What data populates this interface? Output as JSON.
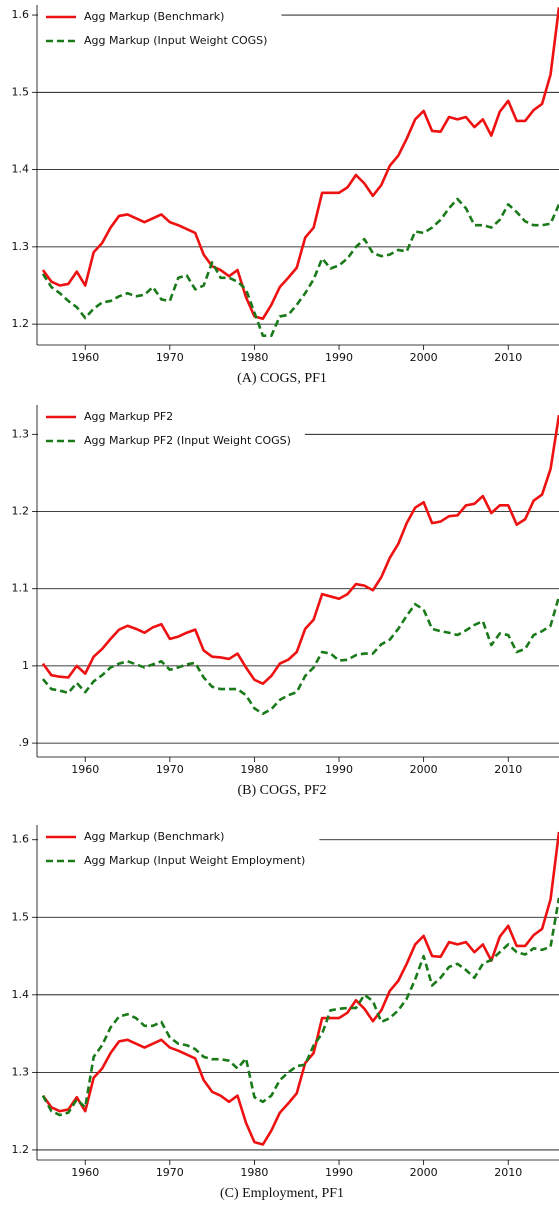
{
  "chart_data": [
    {
      "type": "line",
      "title": "(A) COGS, PF1",
      "x": [
        1955,
        1956,
        1957,
        1958,
        1959,
        1960,
        1961,
        1962,
        1963,
        1964,
        1965,
        1966,
        1967,
        1968,
        1969,
        1970,
        1971,
        1972,
        1973,
        1974,
        1975,
        1976,
        1977,
        1978,
        1979,
        1980,
        1981,
        1982,
        1983,
        1984,
        1985,
        1986,
        1987,
        1988,
        1989,
        1990,
        1991,
        1992,
        1993,
        1994,
        1995,
        1996,
        1997,
        1998,
        1999,
        2000,
        2001,
        2002,
        2003,
        2004,
        2005,
        2006,
        2007,
        2008,
        2009,
        2010,
        2011,
        2012,
        2013,
        2014,
        2015,
        2016
      ],
      "series": [
        {
          "name": "Agg Markup (Benchmark)",
          "color": "#ee1111",
          "dashed": false,
          "values": [
            1.27,
            1.255,
            1.25,
            1.252,
            1.268,
            1.25,
            1.293,
            1.305,
            1.325,
            1.34,
            1.342,
            1.337,
            1.332,
            1.337,
            1.342,
            1.332,
            1.328,
            1.323,
            1.318,
            1.29,
            1.275,
            1.27,
            1.262,
            1.27,
            1.235,
            1.21,
            1.207,
            1.225,
            1.248,
            1.26,
            1.273,
            1.312,
            1.325,
            1.37,
            1.37,
            1.37,
            1.377,
            1.393,
            1.382,
            1.366,
            1.38,
            1.405,
            1.418,
            1.44,
            1.465,
            1.476,
            1.45,
            1.449,
            1.468,
            1.465,
            1.468,
            1.455,
            1.465,
            1.444,
            1.475,
            1.489,
            1.463,
            1.463,
            1.477,
            1.485,
            1.523,
            1.61
          ]
        },
        {
          "name": "Agg Markup (Input Weight COGS)",
          "color": "#1a7a1a",
          "dashed": true,
          "values": [
            1.265,
            1.248,
            1.24,
            1.23,
            1.222,
            1.208,
            1.22,
            1.228,
            1.23,
            1.236,
            1.24,
            1.236,
            1.238,
            1.248,
            1.232,
            1.23,
            1.26,
            1.263,
            1.245,
            1.25,
            1.28,
            1.26,
            1.26,
            1.255,
            1.245,
            1.215,
            1.185,
            1.185,
            1.21,
            1.212,
            1.225,
            1.24,
            1.258,
            1.285,
            1.272,
            1.276,
            1.285,
            1.3,
            1.31,
            1.292,
            1.288,
            1.29,
            1.296,
            1.294,
            1.32,
            1.318,
            1.325,
            1.335,
            1.35,
            1.362,
            1.35,
            1.328,
            1.328,
            1.325,
            1.335,
            1.355,
            1.345,
            1.333,
            1.328,
            1.328,
            1.33,
            1.355
          ]
        }
      ],
      "xlim": [
        1954.3,
        2016
      ],
      "xticks": [
        1960,
        1970,
        1980,
        1990,
        2000,
        2010
      ],
      "ylim": [
        1.173,
        1.613
      ],
      "yticks": [
        1.2,
        1.3,
        1.4,
        1.5,
        1.6
      ],
      "grid": true,
      "legend": "top-left"
    },
    {
      "type": "line",
      "title": "(B) COGS, PF2",
      "x": [
        1955,
        1956,
        1957,
        1958,
        1959,
        1960,
        1961,
        1962,
        1963,
        1964,
        1965,
        1966,
        1967,
        1968,
        1969,
        1970,
        1971,
        1972,
        1973,
        1974,
        1975,
        1976,
        1977,
        1978,
        1979,
        1980,
        1981,
        1982,
        1983,
        1984,
        1985,
        1986,
        1987,
        1988,
        1989,
        1990,
        1991,
        1992,
        1993,
        1994,
        1995,
        1996,
        1997,
        1998,
        1999,
        2000,
        2001,
        2002,
        2003,
        2004,
        2005,
        2006,
        2007,
        2008,
        2009,
        2010,
        2011,
        2012,
        2013,
        2014,
        2015,
        2016
      ],
      "series": [
        {
          "name": "Agg Markup PF2",
          "color": "#ee1111",
          "dashed": false,
          "values": [
            1.003,
            0.988,
            0.986,
            0.985,
            1.0,
            0.99,
            1.012,
            1.022,
            1.035,
            1.047,
            1.052,
            1.048,
            1.043,
            1.05,
            1.054,
            1.035,
            1.038,
            1.043,
            1.047,
            1.02,
            1.012,
            1.011,
            1.009,
            1.016,
            0.998,
            0.982,
            0.977,
            0.987,
            1.003,
            1.008,
            1.018,
            1.048,
            1.06,
            1.093,
            1.09,
            1.087,
            1.093,
            1.106,
            1.104,
            1.098,
            1.115,
            1.14,
            1.158,
            1.185,
            1.205,
            1.212,
            1.185,
            1.187,
            1.194,
            1.195,
            1.208,
            1.21,
            1.22,
            1.198,
            1.208,
            1.208,
            1.183,
            1.19,
            1.214,
            1.222,
            1.255,
            1.325
          ]
        },
        {
          "name": "Agg Markup PF2 (Input Weight COGS)",
          "color": "#1a7a1a",
          "dashed": true,
          "values": [
            0.983,
            0.97,
            0.968,
            0.965,
            0.978,
            0.966,
            0.98,
            0.988,
            0.998,
            1.003,
            1.006,
            1.002,
            0.998,
            1.002,
            1.006,
            0.995,
            0.998,
            1.002,
            1.004,
            0.985,
            0.973,
            0.97,
            0.97,
            0.97,
            0.962,
            0.945,
            0.938,
            0.944,
            0.956,
            0.962,
            0.966,
            0.987,
            0.998,
            1.018,
            1.016,
            1.007,
            1.008,
            1.014,
            1.016,
            1.016,
            1.028,
            1.034,
            1.048,
            1.065,
            1.08,
            1.073,
            1.048,
            1.045,
            1.043,
            1.04,
            1.046,
            1.053,
            1.058,
            1.027,
            1.042,
            1.04,
            1.018,
            1.022,
            1.04,
            1.045,
            1.052,
            1.09
          ]
        }
      ],
      "xlim": [
        1954.3,
        2016
      ],
      "xticks": [
        1960,
        1970,
        1980,
        1990,
        2000,
        2010
      ],
      "ylim": [
        0.882,
        1.338
      ],
      "yticks": [
        {
          "value": 0.9,
          "label": ".9"
        },
        1,
        1.1,
        1.2,
        1.3
      ],
      "grid": true,
      "legend": "top-left"
    },
    {
      "type": "line",
      "title": "(C) Employment, PF1",
      "x": [
        1955,
        1956,
        1957,
        1958,
        1959,
        1960,
        1961,
        1962,
        1963,
        1964,
        1965,
        1966,
        1967,
        1968,
        1969,
        1970,
        1971,
        1972,
        1973,
        1974,
        1975,
        1976,
        1977,
        1978,
        1979,
        1980,
        1981,
        1982,
        1983,
        1984,
        1985,
        1986,
        1987,
        1988,
        1989,
        1990,
        1991,
        1992,
        1993,
        1994,
        1995,
        1996,
        1997,
        1998,
        1999,
        2000,
        2001,
        2002,
        2003,
        2004,
        2005,
        2006,
        2007,
        2008,
        2009,
        2010,
        2011,
        2012,
        2013,
        2014,
        2015,
        2016
      ],
      "series": [
        {
          "name": "Agg Markup (Benchmark)",
          "color": "#ee1111",
          "dashed": false,
          "values": [
            1.27,
            1.255,
            1.25,
            1.252,
            1.268,
            1.25,
            1.293,
            1.305,
            1.325,
            1.34,
            1.342,
            1.337,
            1.332,
            1.337,
            1.342,
            1.332,
            1.328,
            1.323,
            1.318,
            1.29,
            1.275,
            1.27,
            1.262,
            1.27,
            1.235,
            1.21,
            1.207,
            1.225,
            1.248,
            1.26,
            1.273,
            1.312,
            1.325,
            1.37,
            1.37,
            1.37,
            1.377,
            1.393,
            1.382,
            1.366,
            1.38,
            1.405,
            1.418,
            1.44,
            1.465,
            1.476,
            1.45,
            1.449,
            1.468,
            1.465,
            1.468,
            1.455,
            1.465,
            1.444,
            1.475,
            1.489,
            1.463,
            1.463,
            1.477,
            1.485,
            1.523,
            1.61
          ]
        },
        {
          "name": "Agg Markup (Input Weight Employment)",
          "color": "#1a7a1a",
          "dashed": true,
          "values": [
            1.27,
            1.25,
            1.245,
            1.248,
            1.265,
            1.255,
            1.32,
            1.335,
            1.358,
            1.372,
            1.375,
            1.37,
            1.36,
            1.36,
            1.365,
            1.345,
            1.337,
            1.335,
            1.33,
            1.32,
            1.317,
            1.317,
            1.315,
            1.305,
            1.318,
            1.268,
            1.262,
            1.27,
            1.29,
            1.3,
            1.308,
            1.31,
            1.335,
            1.35,
            1.38,
            1.382,
            1.383,
            1.383,
            1.4,
            1.392,
            1.365,
            1.37,
            1.38,
            1.395,
            1.42,
            1.45,
            1.412,
            1.422,
            1.436,
            1.44,
            1.432,
            1.422,
            1.44,
            1.445,
            1.455,
            1.465,
            1.455,
            1.452,
            1.46,
            1.458,
            1.462,
            1.525
          ]
        }
      ],
      "xlim": [
        1954.3,
        2016
      ],
      "xticks": [
        1960,
        1970,
        1980,
        1990,
        2000,
        2010
      ],
      "ylim": [
        1.187,
        1.619
      ],
      "yticks": [
        1.2,
        1.3,
        1.4,
        1.5,
        1.6
      ],
      "grid": true,
      "legend": "top-left"
    }
  ]
}
